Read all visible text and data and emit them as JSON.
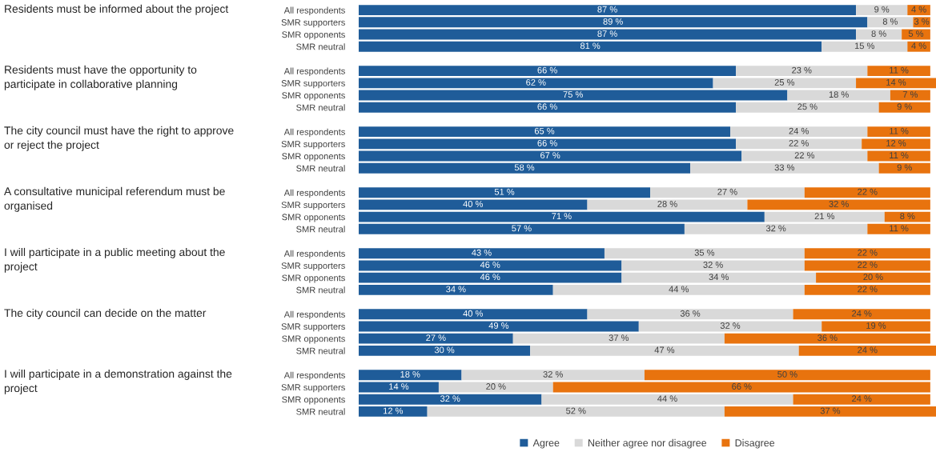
{
  "chart_data": {
    "type": "bar",
    "orientation": "horizontal",
    "stacked": true,
    "tick_labels": "y",
    "legend": "bottom",
    "categories": [
      "All respondents",
      "SMR supporters",
      "SMR opponents",
      "SMR neutral",
      null,
      "All respondents",
      "SMR supporters",
      "SMR opponents",
      "SMR neutral",
      null,
      "All respondents",
      "SMR supporters",
      "SMR opponents",
      "SMR neutral",
      null,
      "All respondents",
      "SMR supporters",
      "SMR opponents",
      "SMR neutral",
      null,
      "All respondents",
      "SMR supporters",
      "SMR opponents",
      "SMR neutral",
      null,
      "All respondents",
      "SMR supporters",
      "SMR opponents",
      "SMR neutral",
      null,
      "All respondents",
      "SMR supporters",
      "SMR opponents",
      "SMR neutral"
    ],
    "annotations": [
      "Residents must be informed about the project",
      "Residents must have the opportunity to participate in collaborative planning",
      "The city council must have the right to approve or reject the project",
      "A consultative municipal referendum must be organised",
      "I will participate in a public meeting about the project",
      "The city council can decide on the matter",
      "I will participate in a demonstration against the project"
    ],
    "series": [
      {
        "name": "Agree",
        "color": "#1f5c99",
        "values": [
          87,
          89,
          87,
          81,
          null,
          66,
          62,
          75,
          66,
          null,
          65,
          66,
          67,
          58,
          null,
          51,
          40,
          71,
          57,
          null,
          43,
          46,
          46,
          34,
          null,
          40,
          49,
          27,
          30,
          null,
          18,
          14,
          32,
          12
        ],
        "value_labels": [
          "87 %",
          "89 %",
          "87 %",
          "81 %",
          null,
          "66 %",
          "62 %",
          "75 %",
          "66 %",
          null,
          "65 %",
          "66 %",
          "67 %",
          "58 %",
          null,
          "51 %",
          "40 %",
          "71 %",
          "57 %",
          null,
          "43 %",
          "46 %",
          "46 %",
          "34 %",
          null,
          "40 %",
          "49 %",
          "27 %",
          "30 %",
          null,
          "18 %",
          "14 %",
          "32 %",
          "12 %"
        ]
      },
      {
        "name": "Neither agree nor disagree",
        "color": "#d9d9d9",
        "values": [
          9,
          8,
          8,
          15,
          null,
          23,
          25,
          18,
          25,
          null,
          24,
          22,
          22,
          33,
          null,
          27,
          28,
          21,
          32,
          null,
          35,
          32,
          34,
          44,
          null,
          36,
          32,
          37,
          47,
          null,
          32,
          20,
          44,
          52
        ],
        "value_labels": [
          "9 %",
          "8 %",
          "8 %",
          "15 %",
          null,
          "23 %",
          "25 %",
          "18 %",
          "25 %",
          null,
          "24 %",
          "22 %",
          "22 %",
          "33 %",
          null,
          "27 %",
          "28 %",
          "21 %",
          "32 %",
          null,
          "35 %",
          "32 %",
          "34 %",
          "44 %",
          null,
          "36 %",
          "32 %",
          "37 %",
          "47 %",
          null,
          "32 %",
          "20 %",
          "44 %",
          "52 %"
        ]
      },
      {
        "name": "Disagree",
        "color": "#e8730e",
        "values": [
          4,
          3,
          5,
          4,
          null,
          11,
          14,
          7,
          9,
          null,
          11,
          12,
          11,
          9,
          null,
          22,
          32,
          8,
          11,
          null,
          22,
          22,
          20,
          22,
          null,
          24,
          19,
          36,
          24,
          null,
          50,
          66,
          24,
          37
        ],
        "value_labels": [
          "4 %",
          "3 %",
          "5 %",
          "4 %",
          null,
          "11 %",
          "14 %",
          "7 %",
          "9 %",
          null,
          "11 %",
          "12 %",
          "11 %",
          "9 %",
          null,
          "22 %",
          "32 %",
          "8 %",
          "11 %",
          null,
          "22 %",
          "22 %",
          "20 %",
          "22 %",
          null,
          "24 %",
          "19 %",
          "36 %",
          "24 %",
          null,
          "50 %",
          "66 %",
          "24 %",
          "37 %"
        ]
      }
    ]
  }
}
